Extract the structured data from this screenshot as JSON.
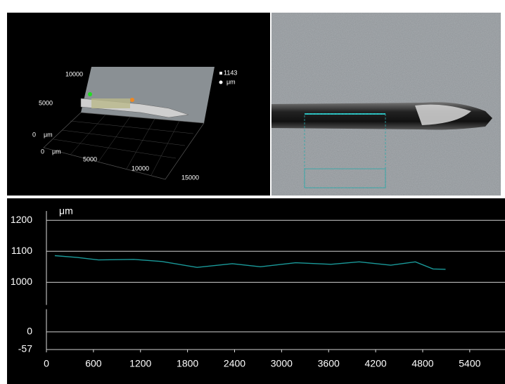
{
  "view3d": {
    "labels": [
      "10000",
      "5000",
      "0",
      "μm",
      "0",
      "μm",
      "5000",
      "10000",
      "15000",
      "1143",
      "μm"
    ]
  },
  "chart_data": {
    "type": "line",
    "y_label": "μm",
    "x": [
      107,
      395,
      665,
      1114,
      1473,
      1922,
      2371,
      2730,
      3180,
      3629,
      3988,
      4392,
      4707,
      4932,
      5092
    ],
    "values": [
      1086,
      1080,
      1072,
      1074,
      1067,
      1048,
      1060,
      1050,
      1063,
      1058,
      1066,
      1055,
      1066,
      1043,
      1042
    ],
    "color": "#1a9a9a",
    "xlim": [
      0,
      5850
    ],
    "xticks": [
      0,
      600,
      1200,
      1800,
      2400,
      3000,
      3600,
      4200,
      4800,
      5400
    ],
    "ylim": [
      -57,
      1230
    ],
    "ybreak": [
      80,
      920
    ],
    "yticks": [
      -57,
      0,
      1000,
      1100,
      1200
    ],
    "grid": true
  }
}
